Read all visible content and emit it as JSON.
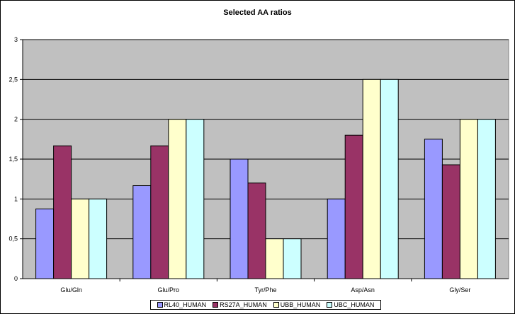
{
  "chart_data": {
    "type": "bar",
    "title": "Selected AA ratios",
    "xlabel": "",
    "ylabel": "",
    "categories": [
      "Glu/Gln",
      "Glu/Pro",
      "Tyr/Phe",
      "Asp/Asn",
      "Gly/Ser"
    ],
    "y_ticks": [
      "0",
      "0,5",
      "1",
      "1,5",
      "2",
      "2,5",
      "3"
    ],
    "ylim": [
      0,
      3
    ],
    "grid": true,
    "legend_position": "bottom",
    "plot_background": "#c0c0c0",
    "series": [
      {
        "name": "RL40_HUMAN",
        "color": "#9999ff",
        "values": [
          0.875,
          1.167,
          1.5,
          1.0,
          1.75
        ]
      },
      {
        "name": "RS27A_HUMAN",
        "color": "#993366",
        "values": [
          1.667,
          1.667,
          1.2,
          1.8,
          1.429
        ]
      },
      {
        "name": "UBB_HUMAN",
        "color": "#ffffcc",
        "values": [
          1.0,
          2.0,
          0.5,
          2.5,
          2.0
        ]
      },
      {
        "name": "UBC_HUMAN",
        "color": "#ccffff",
        "values": [
          1.0,
          2.0,
          0.5,
          2.5,
          2.0
        ]
      }
    ]
  }
}
